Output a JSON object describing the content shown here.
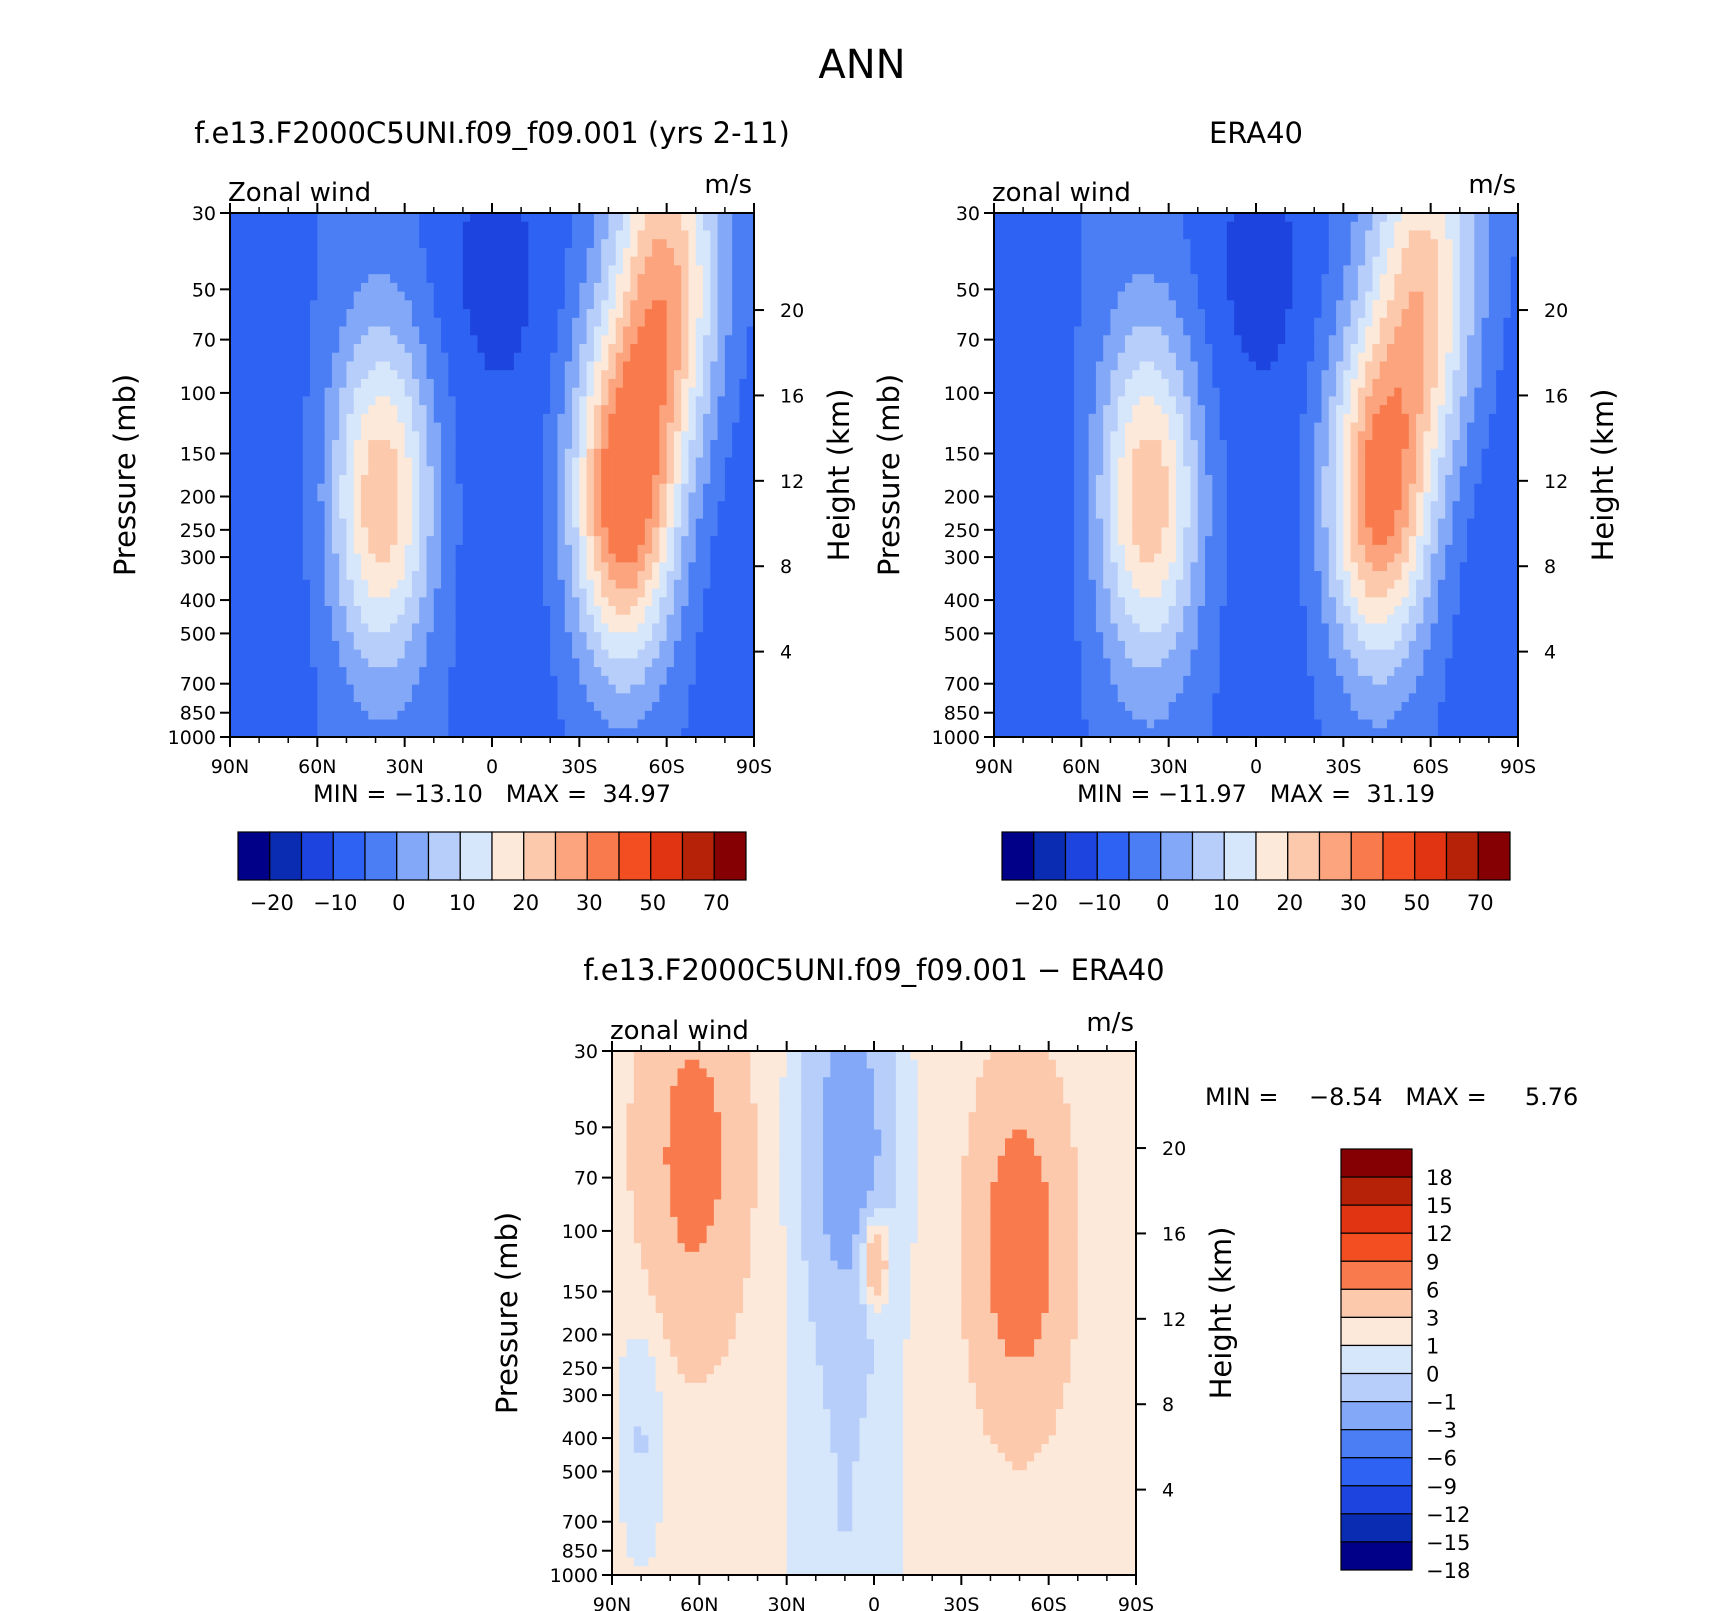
{
  "figure": {
    "title": "ANN"
  },
  "chart_data": [
    {
      "type": "heatmap",
      "panel": "model",
      "title": "f.e13.F2000C5UNI.f09_f09.001 (yrs 2-11)",
      "left_label": "Zonal wind",
      "right_label": "m/s",
      "ylabel": "Pressure (mb)",
      "ylabel_right": "Height (km)",
      "x_ticks": [
        "90N",
        "60N",
        "30N",
        "0",
        "30S",
        "60S",
        "90S"
      ],
      "x_values": [
        90,
        60,
        30,
        0,
        -30,
        -60,
        -90
      ],
      "xlim": [
        90,
        -90
      ],
      "y_ticks": [
        30,
        50,
        70,
        100,
        150,
        200,
        250,
        300,
        400,
        500,
        700,
        850,
        1000
      ],
      "ylim": [
        1000,
        30
      ],
      "y_scale": "log",
      "y_right_ticks": [
        4,
        8,
        12,
        16,
        20
      ],
      "min_max": "MIN = −13.10   MAX =  34.97",
      "min": -13.1,
      "max": 34.97,
      "jets": [
        {
          "lat": 38,
          "p": 200,
          "peak": 22
        },
        {
          "lat": -45,
          "p": 200,
          "peak": 35
        },
        {
          "lat": -60,
          "p": 40,
          "peak": 33
        }
      ],
      "colorbar": {
        "orientation": "horizontal",
        "colors": [
          "#000088",
          "#0a2cb3",
          "#1e44e0",
          "#2e62f2",
          "#4b7ef5",
          "#82a8f7",
          "#b6cef9",
          "#d6e6fb",
          "#fde9da",
          "#fcc9ad",
          "#fba47e",
          "#f87a4d",
          "#f34e22",
          "#e03412",
          "#b52208",
          "#850002"
        ],
        "tick_labels": [
          "−20",
          "−10",
          "0",
          "10",
          "20",
          "30",
          "50",
          "70"
        ]
      }
    },
    {
      "type": "heatmap",
      "panel": "obs",
      "title": "ERA40",
      "left_label": "zonal wind",
      "right_label": "m/s",
      "ylabel": "Pressure (mb)",
      "ylabel_right": "Height (km)",
      "x_ticks": [
        "90N",
        "60N",
        "30N",
        "0",
        "30S",
        "60S",
        "90S"
      ],
      "x_values": [
        90,
        60,
        30,
        0,
        -30,
        -60,
        -90
      ],
      "xlim": [
        90,
        -90
      ],
      "y_ticks": [
        30,
        50,
        70,
        100,
        150,
        200,
        250,
        300,
        400,
        500,
        700,
        850,
        1000
      ],
      "ylim": [
        1000,
        30
      ],
      "y_scale": "log",
      "y_right_ticks": [
        4,
        8,
        12,
        16,
        20
      ],
      "min_max": "MIN = −11.97   MAX =  31.19",
      "min": -11.97,
      "max": 31.19,
      "jets": [
        {
          "lat": 37,
          "p": 200,
          "peak": 22
        },
        {
          "lat": -42,
          "p": 200,
          "peak": 31
        },
        {
          "lat": -58,
          "p": 40,
          "peak": 28
        }
      ],
      "colorbar": {
        "orientation": "horizontal",
        "colors": [
          "#000088",
          "#0a2cb3",
          "#1e44e0",
          "#2e62f2",
          "#4b7ef5",
          "#82a8f7",
          "#b6cef9",
          "#d6e6fb",
          "#fde9da",
          "#fcc9ad",
          "#fba47e",
          "#f87a4d",
          "#f34e22",
          "#e03412",
          "#b52208",
          "#850002"
        ],
        "tick_labels": [
          "−20",
          "−10",
          "0",
          "10",
          "20",
          "30",
          "50",
          "70"
        ]
      }
    },
    {
      "type": "heatmap",
      "panel": "difference",
      "title": "f.e13.F2000C5UNI.f09_f09.001 − ERA40",
      "left_label": "zonal wind",
      "right_label": "m/s",
      "ylabel": "Pressure (mb)",
      "ylabel_right": "Height (km)",
      "x_ticks": [
        "90N",
        "60N",
        "30N",
        "0",
        "30S",
        "60S",
        "90S"
      ],
      "x_values": [
        90,
        60,
        30,
        0,
        -30,
        -60,
        -90
      ],
      "xlim": [
        90,
        -90
      ],
      "y_ticks": [
        30,
        50,
        70,
        100,
        150,
        200,
        250,
        300,
        400,
        500,
        700,
        850,
        1000
      ],
      "ylim": [
        1000,
        30
      ],
      "y_scale": "log",
      "y_right_ticks": [
        4,
        8,
        12,
        16,
        20
      ],
      "min_max": "MIN =    −8.54   MAX =     5.76",
      "min": -8.54,
      "max": 5.76,
      "colorbar": {
        "orientation": "vertical",
        "colors": [
          "#850002",
          "#b52208",
          "#e03412",
          "#f34e22",
          "#f87a4d",
          "#fcc9ad",
          "#fde9da",
          "#d6e6fb",
          "#b6cef9",
          "#82a8f7",
          "#4b7ef5",
          "#2e62f2",
          "#1e44e0",
          "#0a2cb3",
          "#000088"
        ],
        "tick_labels": [
          "18",
          "15",
          "12",
          "9",
          "6",
          "3",
          "1",
          "0",
          "−1",
          "−3",
          "−6",
          "−9",
          "−12",
          "−15",
          "−18"
        ]
      }
    }
  ]
}
